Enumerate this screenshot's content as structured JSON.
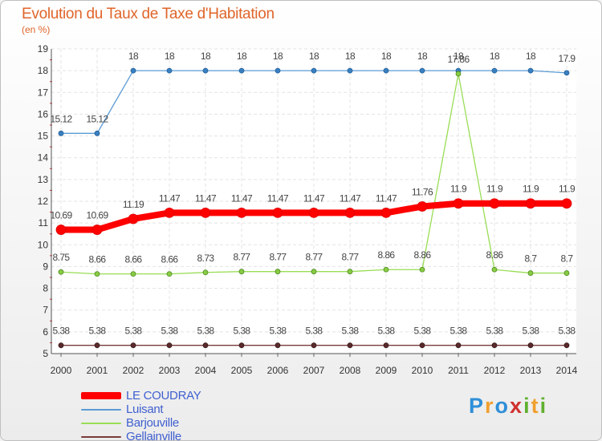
{
  "chart_data": {
    "type": "line",
    "title": "Evolution du Taux de Taxe d'Habitation",
    "subtitle": "(en %)",
    "xlabel": "",
    "ylabel": "(en %)",
    "x": [
      "2000",
      "2001",
      "2002",
      "2003",
      "2004",
      "2005",
      "2006",
      "2007",
      "2008",
      "2009",
      "2010",
      "2011",
      "2012",
      "2013",
      "2014"
    ],
    "ylim": [
      5,
      19
    ],
    "yticks": [
      "5",
      "6",
      "7",
      "8",
      "9",
      "10",
      "11",
      "12",
      "13",
      "14",
      "15",
      "16",
      "17",
      "18",
      "19"
    ],
    "grid": true,
    "legend_position": "bottom-left",
    "series": [
      {
        "name": "LE COUDRAY",
        "color": "#ff0000",
        "values": [
          10.69,
          10.69,
          11.19,
          11.47,
          11.47,
          11.47,
          11.47,
          11.47,
          11.47,
          11.47,
          11.76,
          11.9,
          11.9,
          11.9,
          11.9
        ],
        "labels": [
          "10.69",
          "10.69",
          "11.19",
          "11.47",
          "11.47",
          "11.47",
          "11.47",
          "11.47",
          "11.47",
          "11.47",
          "11.76",
          "11.9",
          "11.9",
          "11.9",
          "11.9"
        ]
      },
      {
        "name": "Luisant",
        "color": "#5b9bd5",
        "values": [
          15.12,
          15.12,
          18,
          18,
          18,
          18,
          18,
          18,
          18,
          18,
          18,
          18,
          18,
          18,
          17.9
        ],
        "labels": [
          "15.12",
          "15.12",
          "18",
          "18",
          "18",
          "18",
          "18",
          "18",
          "18",
          "18",
          "18",
          "18",
          "18",
          "18",
          "17.9"
        ]
      },
      {
        "name": "Barjouville",
        "color": "#99dd55",
        "values": [
          8.75,
          8.66,
          8.66,
          8.66,
          8.73,
          8.77,
          8.77,
          8.77,
          8.77,
          8.86,
          8.86,
          17.86,
          8.86,
          8.7,
          8.7
        ],
        "labels": [
          "8.75",
          "8.66",
          "8.66",
          "8.66",
          "8.73",
          "8.77",
          "8.77",
          "8.77",
          "8.77",
          "8.86",
          "8.86",
          "17.86",
          "8.86",
          "8.7",
          "8.7"
        ]
      },
      {
        "name": "Gellainville",
        "color": "#7a3b3b",
        "values": [
          5.38,
          5.38,
          5.38,
          5.38,
          5.38,
          5.38,
          5.38,
          5.38,
          5.38,
          5.38,
          5.38,
          5.38,
          5.38,
          5.38,
          5.38
        ],
        "labels": [
          "5.38",
          "5.38",
          "5.38",
          "5.38",
          "5.38",
          "5.38",
          "5.38",
          "5.38",
          "5.38",
          "5.38",
          "5.38",
          "5.38",
          "5.38",
          "5.38",
          "5.38"
        ]
      }
    ]
  },
  "legend": {
    "items": [
      {
        "label": "LE COUDRAY"
      },
      {
        "label": "Luisant"
      },
      {
        "label": "Barjouville"
      },
      {
        "label": "Gellainville"
      }
    ]
  },
  "logo": {
    "text": "Proxiti",
    "letters": [
      "P",
      "r",
      "o",
      "x",
      "i",
      "t",
      "i"
    ],
    "colors": [
      "#2f8fd8",
      "#f0a030",
      "#2f8fd8",
      "#d03030",
      "#60b030",
      "#f0a030",
      "#60b030"
    ]
  }
}
